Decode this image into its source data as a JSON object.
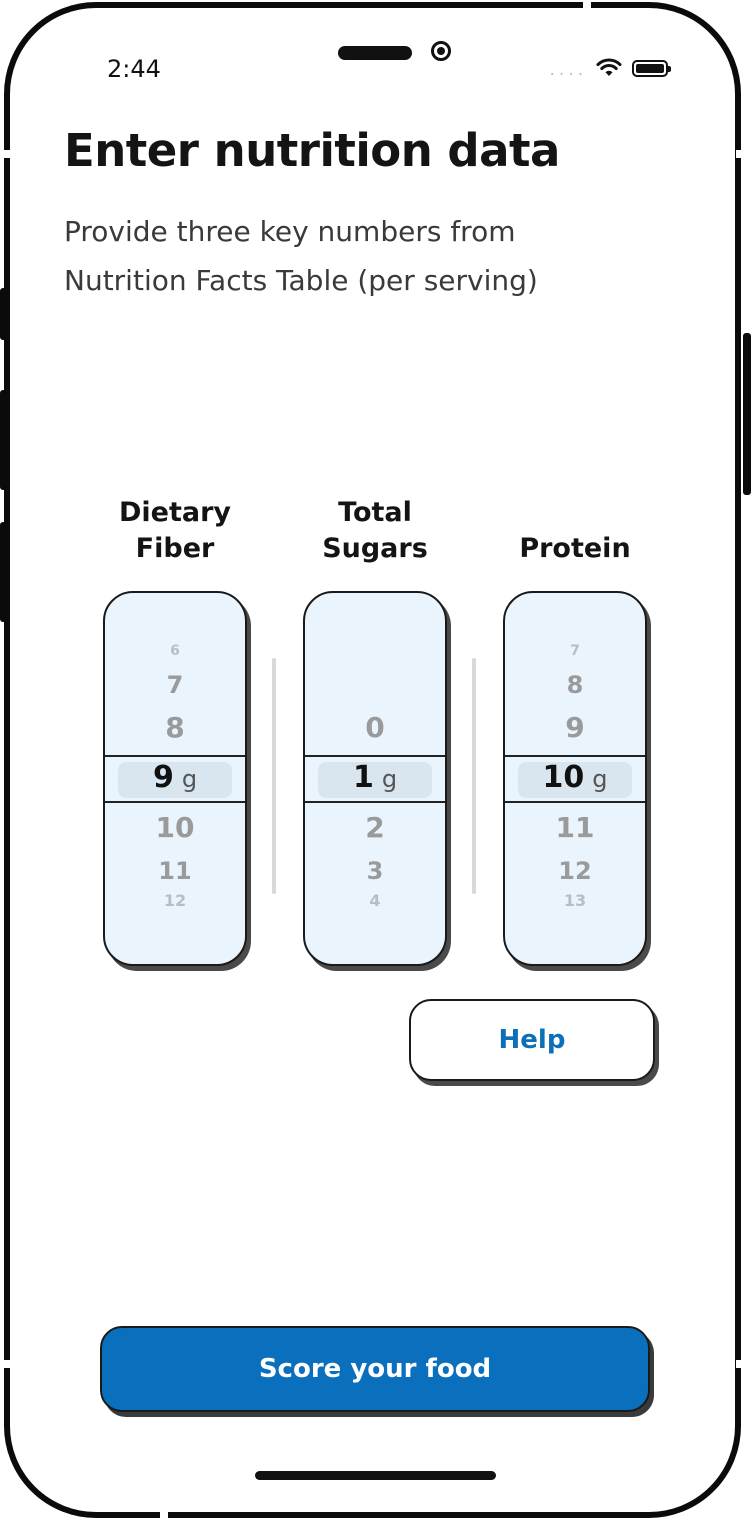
{
  "status_bar": {
    "time": "2:44",
    "signal": "....",
    "icons": [
      "wifi-icon",
      "battery-icon"
    ]
  },
  "header": {
    "title": "Enter nutrition data",
    "subtitle": "Provide three key numbers from Nutrition Facts Table (per serving)"
  },
  "pickers": [
    {
      "label_lines": [
        "Dietary",
        "Fiber"
      ],
      "above": [
        "6",
        "7",
        "8"
      ],
      "selected": "9",
      "unit": "g",
      "below": [
        "10",
        "11",
        "12"
      ]
    },
    {
      "label_lines": [
        "Total",
        "Sugars"
      ],
      "above": [
        "",
        "",
        "0"
      ],
      "selected": "1",
      "unit": "g",
      "below": [
        "2",
        "3",
        "4"
      ]
    },
    {
      "label_lines": [
        "Protein"
      ],
      "above": [
        "7",
        "8",
        "9"
      ],
      "selected": "10",
      "unit": "g",
      "below": [
        "11",
        "12",
        "13"
      ]
    }
  ],
  "buttons": {
    "help": "Help",
    "score": "Score your food"
  },
  "colors": {
    "accent": "#0a6fbd",
    "help_text": "#0c6fb8",
    "picker_bg": "#e9f4fd"
  }
}
